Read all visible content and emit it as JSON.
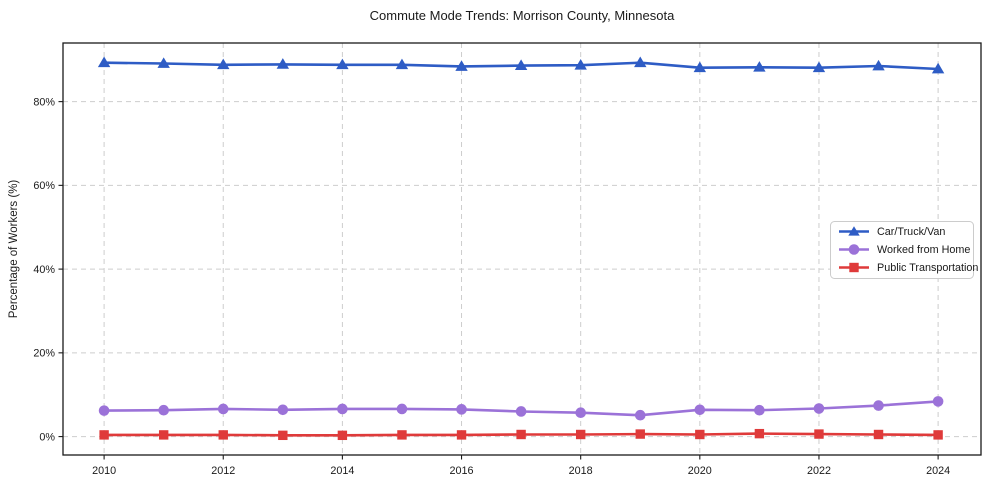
{
  "title": "Commute Mode Trends: Morrison County, Minnesota",
  "chart_data": {
    "type": "line",
    "title": "Commute Mode Trends: Morrison County, Minnesota",
    "xlabel": "",
    "ylabel": "Percentage of Workers (%)",
    "x": [
      2010,
      2011,
      2012,
      2013,
      2014,
      2015,
      2016,
      2017,
      2018,
      2019,
      2020,
      2021,
      2022,
      2023,
      2024
    ],
    "xticks": [
      2010,
      2012,
      2014,
      2016,
      2018,
      2020,
      2022,
      2024
    ],
    "xtick_labels": [
      "2010",
      "2012",
      "2014",
      "2016",
      "2018",
      "2020",
      "2022",
      "2024"
    ],
    "yticks": [
      0,
      20,
      40,
      60,
      80
    ],
    "ytick_labels": [
      "0%",
      "20%",
      "40%",
      "60%",
      "80%"
    ],
    "xlim": [
      2009.31,
      2024.72
    ],
    "ylim": [
      -4.4,
      94.0
    ],
    "grid": true,
    "legend_position": "center-right",
    "series": [
      {
        "name": "Car/Truck/Van",
        "color": "#2e5cc5",
        "marker": "triangle",
        "values": [
          89.3,
          89.1,
          88.8,
          88.9,
          88.8,
          88.8,
          88.4,
          88.6,
          88.7,
          89.3,
          88.1,
          88.2,
          88.1,
          88.5,
          87.8
        ]
      },
      {
        "name": "Worked from Home",
        "color": "#9b72d8",
        "marker": "circle",
        "values": [
          6.2,
          6.3,
          6.6,
          6.4,
          6.6,
          6.6,
          6.5,
          6.0,
          5.7,
          5.1,
          6.4,
          6.3,
          6.7,
          7.4,
          8.4
        ]
      },
      {
        "name": "Public Transportation",
        "color": "#df3a3a",
        "marker": "square",
        "values": [
          0.4,
          0.4,
          0.4,
          0.3,
          0.3,
          0.4,
          0.4,
          0.5,
          0.5,
          0.6,
          0.5,
          0.7,
          0.6,
          0.5,
          0.4
        ]
      }
    ]
  }
}
